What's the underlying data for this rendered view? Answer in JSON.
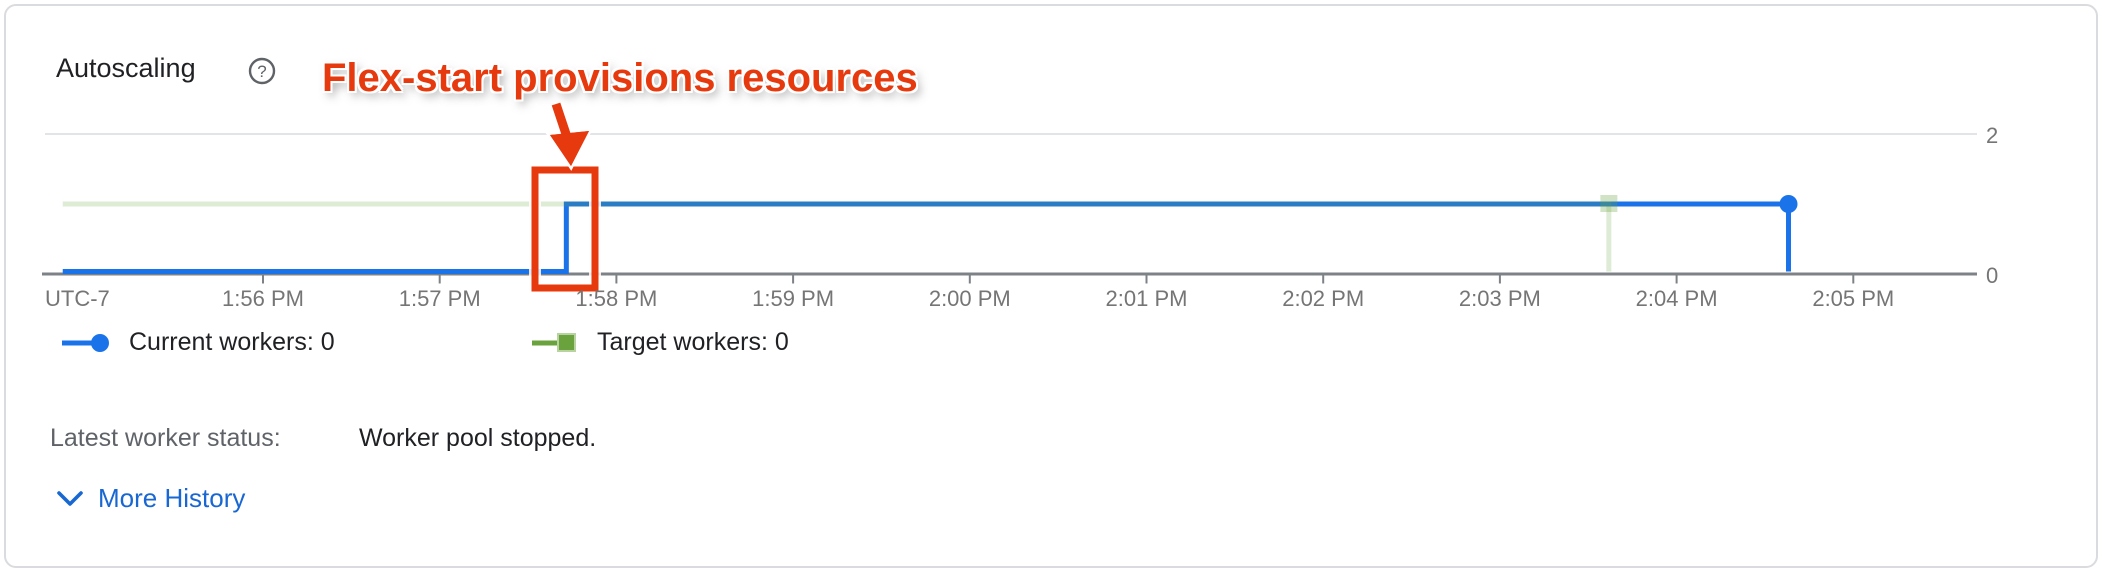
{
  "header": {
    "title": "Autoscaling",
    "help_icon": "circled-question-mark"
  },
  "annotation": {
    "label": "Flex-start provisions resources",
    "color": "#e63a0e",
    "points_at": "step-up of current workers just before 1:58 PM"
  },
  "chart_data": {
    "type": "line",
    "subtype": "stepped-time-series",
    "title": "Autoscaling",
    "x_axis": {
      "timezone_label": "UTC-7",
      "tick_labels": [
        "1:56 PM",
        "1:57 PM",
        "1:58 PM",
        "1:59 PM",
        "2:00 PM",
        "2:01 PM",
        "2:02 PM",
        "2:03 PM",
        "2:04 PM",
        "2:05 PM"
      ]
    },
    "y_axis": {
      "tick_labels": [
        "2",
        "0"
      ],
      "min": 0,
      "max": 2,
      "side": "right"
    },
    "series": [
      {
        "name": "Current workers",
        "legend_label": "Current workers: 0",
        "color": "#1a73e8",
        "marker": "circle",
        "faint": false,
        "steps": [
          {
            "time": "1:54:52 PM",
            "value": 0
          },
          {
            "time": "1:57:43 PM",
            "value": 1
          }
        ],
        "end": {
          "time": "2:04:38 PM",
          "drop_to": 0,
          "marker_value": 1
        }
      },
      {
        "name": "Target workers",
        "legend_label": "Target workers: 0",
        "color": "#6aa23e",
        "marker": "square",
        "faint": true,
        "steps": [
          {
            "time": "1:54:52 PM",
            "value": 1
          },
          {
            "time": "2:03:37 PM",
            "value": 0
          }
        ],
        "end": {
          "time": "2:03:37 PM",
          "marker_value": 1
        }
      }
    ],
    "legend_position": "bottom-left",
    "grid": "horizontal gridline at y=2; baseline axis at y=0"
  },
  "status": {
    "label": "Latest worker status:",
    "value": "Worker pool stopped."
  },
  "more_history": {
    "label": "More History"
  },
  "colors": {
    "series_blue": "#1a73e8",
    "series_green": "#6aa23e",
    "annotation_red": "#e63a0e",
    "link_blue": "#1967d2",
    "axis_gray": "#7d8287",
    "grid_gray": "#e2e4e7"
  }
}
